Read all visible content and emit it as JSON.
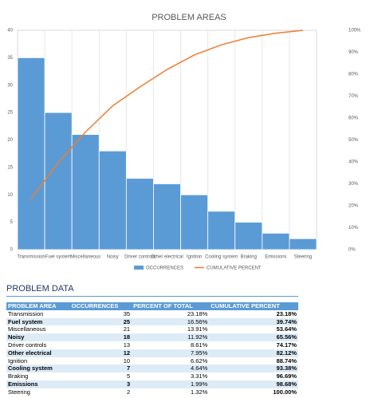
{
  "chart_data": {
    "type": "pareto",
    "title": "PROBLEM AREAS",
    "categories": [
      "Transmission",
      "Fuel system",
      "Miscellaneous",
      "Noisy",
      "Driver controls",
      "Other electrical",
      "Ignition",
      "Cooling system",
      "Braking",
      "Emissions",
      "Steering"
    ],
    "series": [
      {
        "name": "OCCURRENCES",
        "color": "#5b9bd5",
        "type": "bar",
        "values": [
          35,
          25,
          21,
          18,
          13,
          12,
          10,
          7,
          5,
          3,
          2
        ]
      },
      {
        "name": "CUMULATIVE PERCENT",
        "color": "#ed7d31",
        "type": "line",
        "axis": "y2",
        "values": [
          23.18,
          39.74,
          53.64,
          65.56,
          74.17,
          82.12,
          88.74,
          93.38,
          96.69,
          98.68,
          100
        ]
      }
    ],
    "ylim": [
      0,
      40
    ],
    "yticks": [
      0,
      5,
      10,
      15,
      20,
      25,
      30,
      35,
      40
    ],
    "y2lim": [
      0,
      100
    ],
    "y2ticks": [
      {
        "value": 0,
        "label": "0%"
      },
      {
        "value": 10,
        "label": "10%"
      },
      {
        "value": 20,
        "label": "20%"
      },
      {
        "value": 30,
        "label": "30%"
      },
      {
        "value": 40,
        "label": "40%"
      },
      {
        "value": 50,
        "label": "50%"
      },
      {
        "value": 60,
        "label": "60%"
      },
      {
        "value": 70,
        "label": "70%"
      },
      {
        "value": 80,
        "label": "80%"
      },
      {
        "value": 90,
        "label": "90%"
      },
      {
        "value": 100,
        "label": "100%"
      }
    ],
    "legend": "bottom"
  },
  "table": {
    "title": "PROBLEM DATA",
    "header": [
      "PROBLEM AREA",
      "OCCURRENCES",
      "PERCENT OF TOTAL",
      "CUMULATIVE PERCENT"
    ],
    "rows": [
      [
        "Transmission",
        35,
        "23.18%",
        "23.18%"
      ],
      [
        "Fuel system",
        25,
        "16.56%",
        "39.74%"
      ],
      [
        "Miscellaneous",
        21,
        "13.91%",
        "53.64%"
      ],
      [
        "Noisy",
        18,
        "11.92%",
        "65.56%"
      ],
      [
        "Driver controls",
        13,
        "8.61%",
        "74.17%"
      ],
      [
        "Other electrical",
        12,
        "7.95%",
        "82.12%"
      ],
      [
        "Ignition",
        10,
        "6.62%",
        "88.74%"
      ],
      [
        "Cooling system",
        7,
        "4.64%",
        "93.38%"
      ],
      [
        "Braking",
        5,
        "3.31%",
        "96.69%"
      ],
      [
        "Emissions",
        3,
        "1.99%",
        "98.68%"
      ],
      [
        "Steering",
        2,
        "1.32%",
        "100.00%"
      ]
    ]
  }
}
